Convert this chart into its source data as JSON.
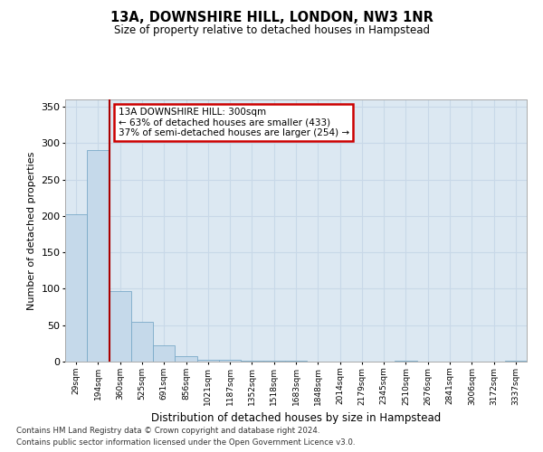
{
  "title": "13A, DOWNSHIRE HILL, LONDON, NW3 1NR",
  "subtitle": "Size of property relative to detached houses in Hampstead",
  "xlabel": "Distribution of detached houses by size in Hampstead",
  "ylabel": "Number of detached properties",
  "categories": [
    "29sqm",
    "194sqm",
    "360sqm",
    "525sqm",
    "691sqm",
    "856sqm",
    "1021sqm",
    "1187sqm",
    "1352sqm",
    "1518sqm",
    "1683sqm",
    "1848sqm",
    "2014sqm",
    "2179sqm",
    "2345sqm",
    "2510sqm",
    "2676sqm",
    "2841sqm",
    "3006sqm",
    "3172sqm",
    "3337sqm"
  ],
  "values": [
    202,
    291,
    97,
    55,
    22,
    8,
    3,
    2,
    1,
    1,
    1,
    0,
    0,
    0,
    0,
    1,
    0,
    0,
    0,
    0,
    1
  ],
  "bar_color": "#c5d9ea",
  "bar_edge_color": "#7aaac8",
  "red_line_x": 1.5,
  "annotation_title": "13A DOWNSHIRE HILL: 300sqm",
  "annotation_line1": "← 63% of detached houses are smaller (433)",
  "annotation_line2": "37% of semi-detached houses are larger (254) →",
  "annotation_box_color": "#ffffff",
  "annotation_border_color": "#cc0000",
  "red_line_color": "#aa0000",
  "grid_color": "#c8d8e8",
  "plot_bg_color": "#dce8f2",
  "ylim": [
    0,
    360
  ],
  "yticks": [
    0,
    50,
    100,
    150,
    200,
    250,
    300,
    350
  ],
  "footer_line1": "Contains HM Land Registry data © Crown copyright and database right 2024.",
  "footer_line2": "Contains public sector information licensed under the Open Government Licence v3.0."
}
